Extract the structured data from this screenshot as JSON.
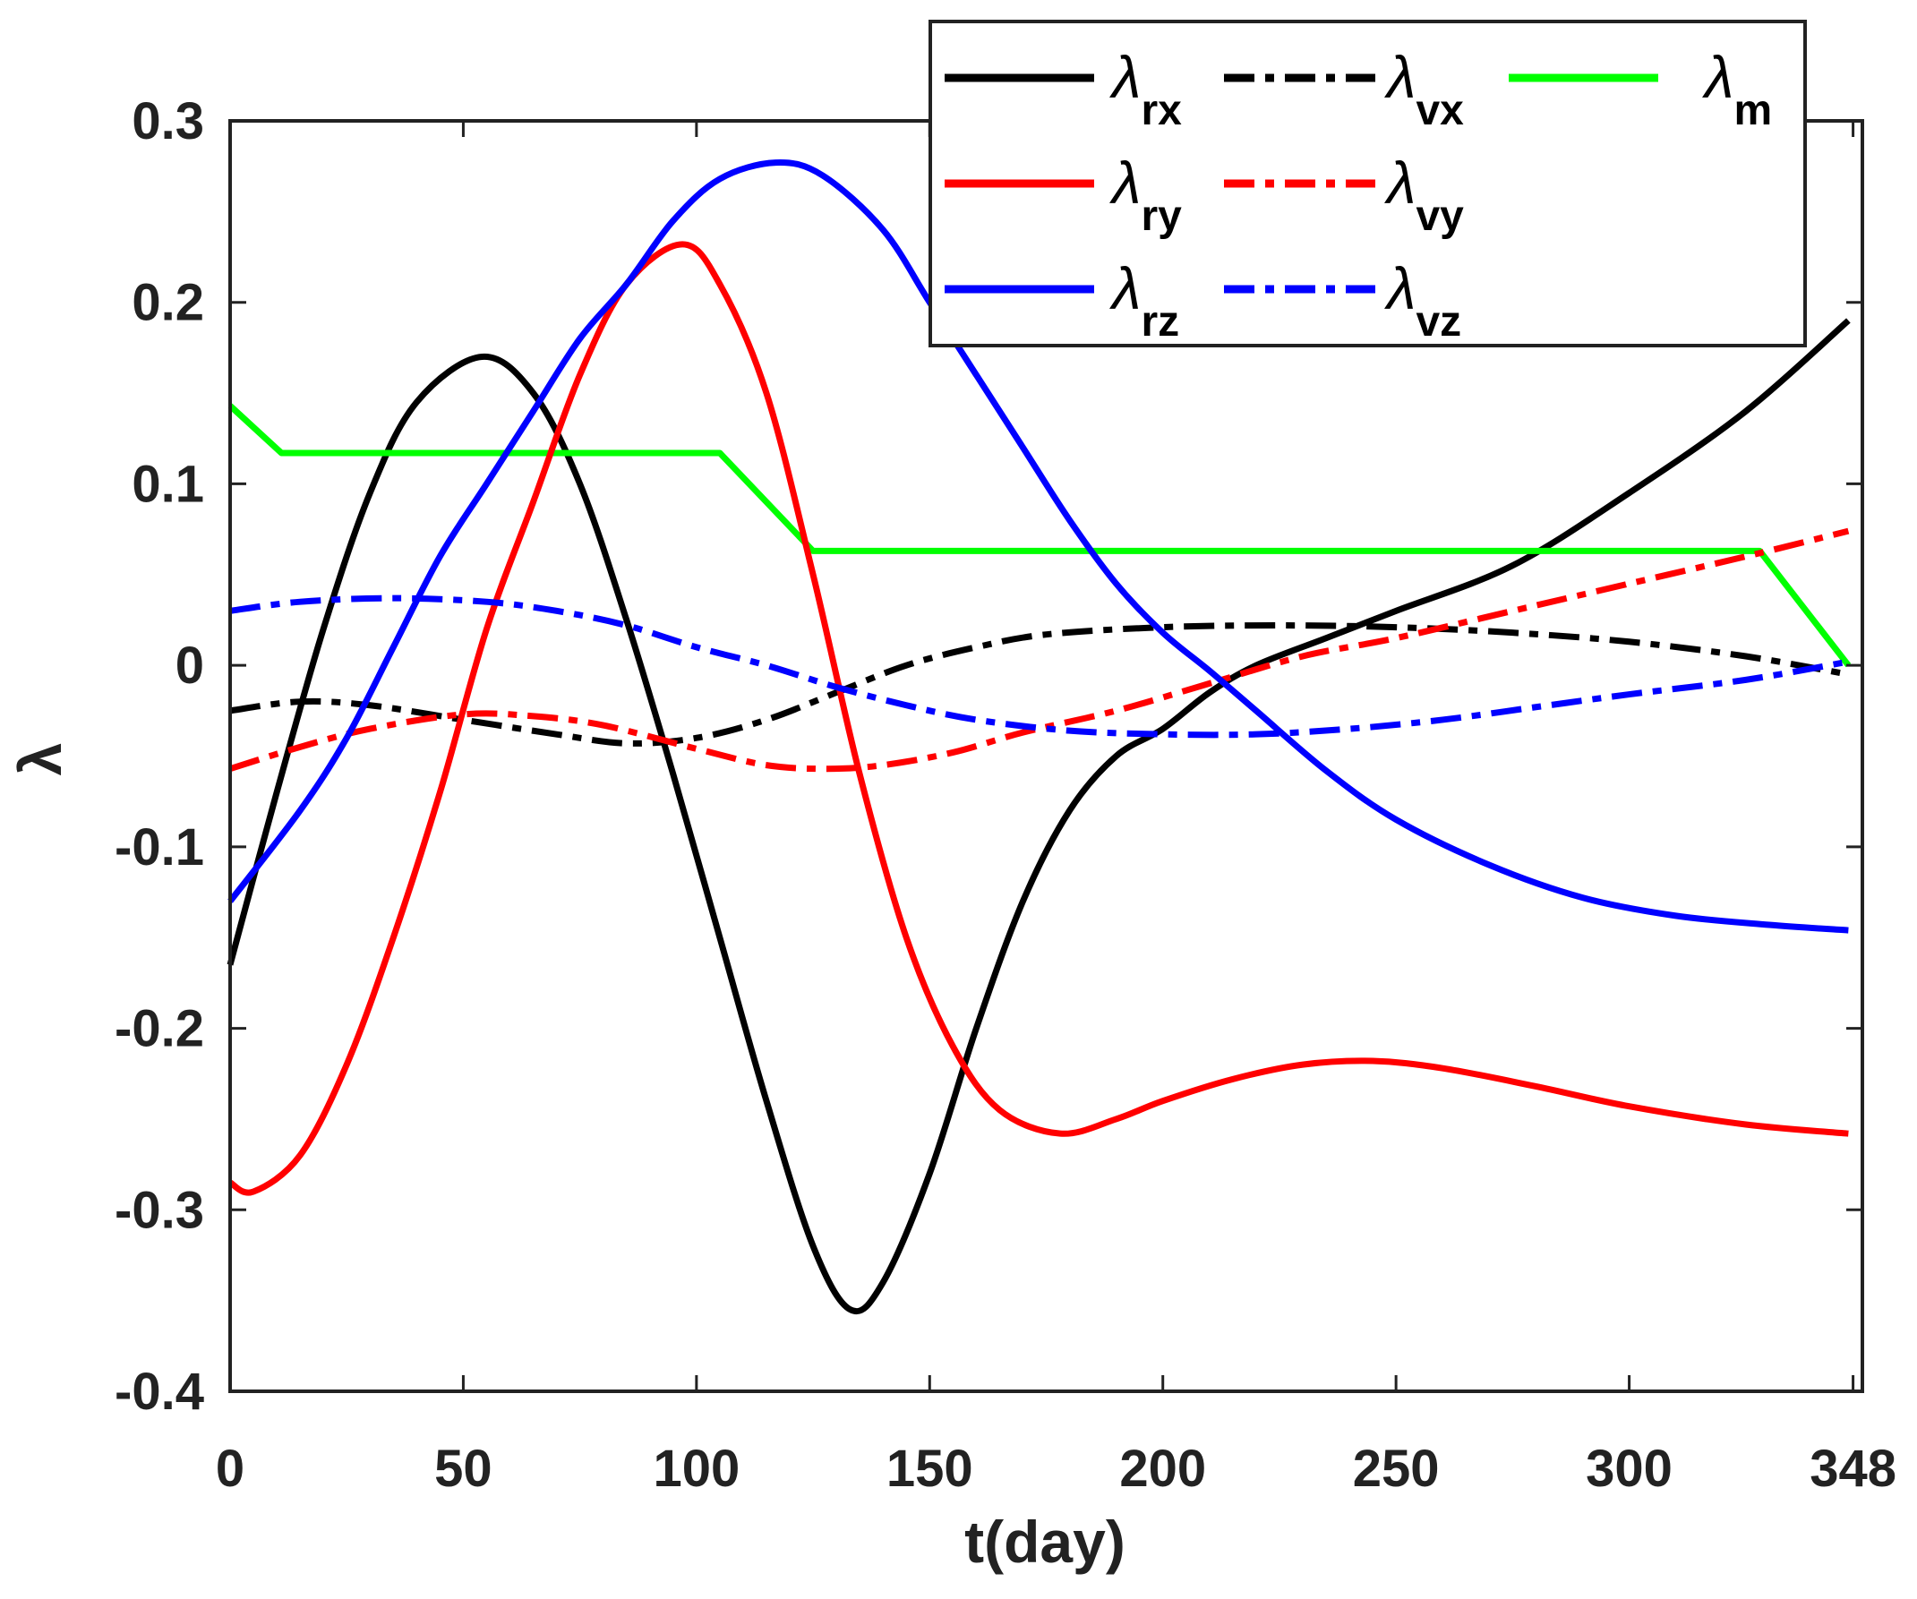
{
  "chart_data": {
    "type": "line",
    "title": "",
    "xlabel": "t(day)",
    "ylabel": "λ",
    "xlim": [
      0,
      350
    ],
    "ylim": [
      -0.4,
      0.3
    ],
    "xticks": [
      0,
      50,
      100,
      150,
      200,
      250,
      300,
      348
    ],
    "xtick_labels": [
      "0",
      "50",
      "100",
      "150",
      "200",
      "250",
      "300",
      "348"
    ],
    "yticks": [
      -0.4,
      -0.3,
      -0.2,
      -0.1,
      0,
      0.1,
      0.2,
      0.3
    ],
    "ytick_labels": [
      "-0.4",
      "-0.3",
      "-0.2",
      "-0.1",
      "0",
      "0.1",
      "0.2",
      "0.3"
    ],
    "grid": false,
    "legend_position": "top-right",
    "series": [
      {
        "name": "λrx",
        "symbol": "λ",
        "sub": "rx",
        "color": "#000000",
        "style": "solid",
        "x": [
          0,
          10,
          20,
          30,
          40,
          54,
          65,
          75,
          85,
          95,
          105,
          115,
          125,
          133,
          140,
          150,
          160,
          170,
          180,
          190,
          200,
          210,
          220,
          235,
          250,
          275,
          300,
          325,
          347
        ],
        "y": [
          -0.165,
          -0.07,
          0.02,
          0.095,
          0.145,
          0.17,
          0.15,
          0.1,
          0.025,
          -0.06,
          -0.15,
          -0.24,
          -0.32,
          -0.355,
          -0.34,
          -0.28,
          -0.2,
          -0.13,
          -0.08,
          -0.05,
          -0.035,
          -0.015,
          0.0,
          0.015,
          0.03,
          0.055,
          0.095,
          0.14,
          0.19
        ]
      },
      {
        "name": "λvx",
        "symbol": "λ",
        "sub": "vx",
        "color": "#000000",
        "style": "dashdot",
        "x": [
          0,
          15,
          30,
          50,
          70,
          85,
          100,
          115,
          130,
          145,
          160,
          175,
          200,
          225,
          250,
          275,
          300,
          325,
          347
        ],
        "y": [
          -0.025,
          -0.02,
          -0.022,
          -0.03,
          -0.038,
          -0.043,
          -0.04,
          -0.03,
          -0.015,
          0.0,
          0.01,
          0.017,
          0.021,
          0.022,
          0.021,
          0.018,
          0.013,
          0.005,
          -0.005
        ]
      },
      {
        "name": "λm",
        "symbol": "λ",
        "sub": "m",
        "color": "#00ff00",
        "style": "solid",
        "x": [
          0,
          11,
          105,
          125,
          328,
          347
        ],
        "y": [
          0.143,
          0.117,
          0.117,
          0.063,
          0.063,
          0.0
        ]
      },
      {
        "name": "λry",
        "symbol": "λ",
        "sub": "ry",
        "color": "#ff0000",
        "style": "solid",
        "x": [
          0,
          5,
          15,
          25,
          35,
          45,
          55,
          65,
          75,
          85,
          97,
          105,
          115,
          125,
          135,
          145,
          155,
          165,
          178,
          190,
          200,
          215,
          230,
          245,
          260,
          280,
          300,
          325,
          347
        ],
        "y": [
          -0.285,
          -0.29,
          -0.27,
          -0.22,
          -0.15,
          -0.07,
          0.02,
          0.09,
          0.16,
          0.21,
          0.232,
          0.21,
          0.15,
          0.05,
          -0.06,
          -0.15,
          -0.21,
          -0.245,
          -0.258,
          -0.25,
          -0.24,
          -0.228,
          -0.22,
          -0.218,
          -0.222,
          -0.232,
          -0.243,
          -0.253,
          -0.258
        ]
      },
      {
        "name": "λvy",
        "symbol": "λ",
        "sub": "vy",
        "color": "#ff0000",
        "style": "dashdot",
        "x": [
          0,
          15,
          30,
          50,
          65,
          80,
          100,
          115,
          128,
          140,
          155,
          170,
          190,
          210,
          230,
          250,
          275,
          300,
          325,
          347
        ],
        "y": [
          -0.057,
          -0.045,
          -0.035,
          -0.027,
          -0.028,
          -0.033,
          -0.046,
          -0.055,
          -0.057,
          -0.055,
          -0.048,
          -0.037,
          -0.025,
          -0.01,
          0.005,
          0.015,
          0.03,
          0.045,
          0.06,
          0.074
        ]
      },
      {
        "name": "λrz",
        "symbol": "λ",
        "sub": "rz",
        "color": "#0000ff",
        "style": "solid",
        "x": [
          0,
          15,
          25,
          35,
          45,
          55,
          65,
          75,
          85,
          95,
          105,
          117,
          127,
          140,
          150,
          160,
          170,
          180,
          190,
          200,
          210,
          220,
          235,
          250,
          270,
          290,
          310,
          330,
          347
        ],
        "y": [
          -0.13,
          -0.08,
          -0.04,
          0.01,
          0.06,
          0.1,
          0.14,
          0.18,
          0.21,
          0.245,
          0.268,
          0.277,
          0.27,
          0.24,
          0.2,
          0.16,
          0.12,
          0.08,
          0.045,
          0.018,
          -0.003,
          -0.025,
          -0.058,
          -0.085,
          -0.11,
          -0.128,
          -0.138,
          -0.143,
          -0.146
        ]
      },
      {
        "name": "λvz",
        "symbol": "λ",
        "sub": "vz",
        "color": "#0000ff",
        "style": "dashdot",
        "x": [
          0,
          15,
          35,
          55,
          70,
          85,
          100,
          115,
          130,
          145,
          160,
          180,
          200,
          220,
          240,
          260,
          280,
          300,
          325,
          347
        ],
        "y": [
          0.03,
          0.035,
          0.037,
          0.035,
          0.03,
          0.022,
          0.01,
          0.0,
          -0.012,
          -0.022,
          -0.03,
          -0.036,
          -0.038,
          -0.038,
          -0.035,
          -0.03,
          -0.023,
          -0.016,
          -0.008,
          0.002
        ]
      }
    ]
  }
}
